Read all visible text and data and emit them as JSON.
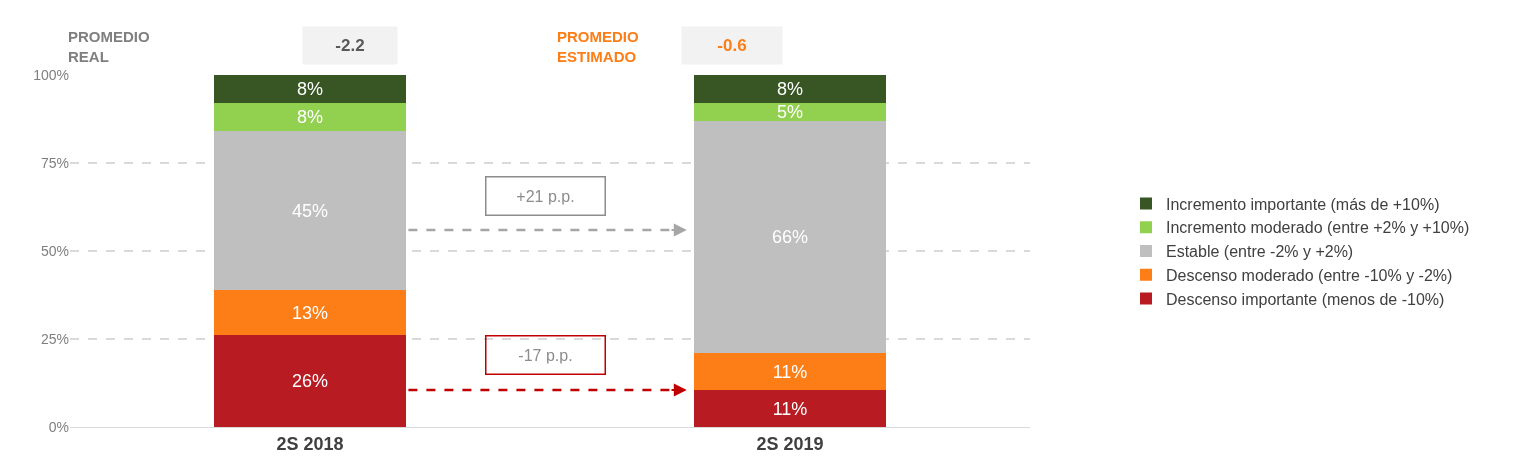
{
  "chart_data": {
    "type": "bar",
    "stacked": true,
    "categories": [
      "2S 2018",
      "2S 2019"
    ],
    "series": [
      {
        "name": "Descenso importante (menos de -10%)",
        "color": "#b81c22",
        "values": [
          26,
          10.5
        ],
        "value_labels": [
          "26%",
          "11%"
        ]
      },
      {
        "name": "Descenso moderado (entre -10% y -2%)",
        "color": "#fd7d17",
        "values": [
          13,
          10.5
        ],
        "value_labels": [
          "13%",
          "11%"
        ]
      },
      {
        "name": "Estable (entre -2% y +2%)",
        "color": "#bfbfbf",
        "values": [
          45,
          66
        ],
        "value_labels": [
          "45%",
          "66%"
        ]
      },
      {
        "name": "Incremento moderado (entre +2% y +10%)",
        "color": "#92d050",
        "values": [
          8,
          5
        ],
        "value_labels": [
          "8%",
          "5%"
        ]
      },
      {
        "name": "Incremento importante (más de +10%)",
        "color": "#375623",
        "values": [
          8,
          8
        ],
        "value_labels": [
          "8%",
          "8%"
        ]
      }
    ],
    "ylim": [
      0,
      100
    ],
    "yticks": [
      {
        "value": 0,
        "label": "0%"
      },
      {
        "value": 25,
        "label": "25%"
      },
      {
        "value": 50,
        "label": "50%"
      },
      {
        "value": 75,
        "label": "75%"
      },
      {
        "value": 100,
        "label": "100%"
      }
    ],
    "grid": "y",
    "legend": "right",
    "annotations": [
      "PROMEDIO REAL",
      "-2.2",
      "PROMEDIO ESTIMADO",
      "-0.6",
      "+21 p.p.",
      "-17 p.p."
    ]
  }
}
